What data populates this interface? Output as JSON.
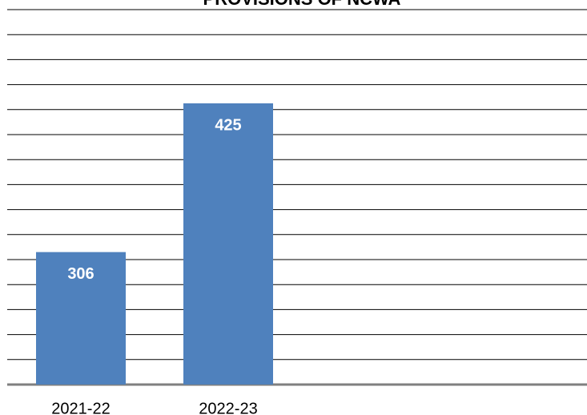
{
  "chart_data": {
    "type": "bar",
    "title": "PROVISIONS OF NCWA",
    "categories": [
      "2021-22",
      "2022-23"
    ],
    "values": [
      306,
      425
    ],
    "color": "#4f81bd",
    "ylim": [
      200,
      500
    ],
    "yticks": [
      200,
      220,
      240,
      260,
      280,
      300,
      320,
      340,
      360,
      380,
      400,
      420,
      440,
      460,
      480,
      500
    ],
    "grid": true
  }
}
